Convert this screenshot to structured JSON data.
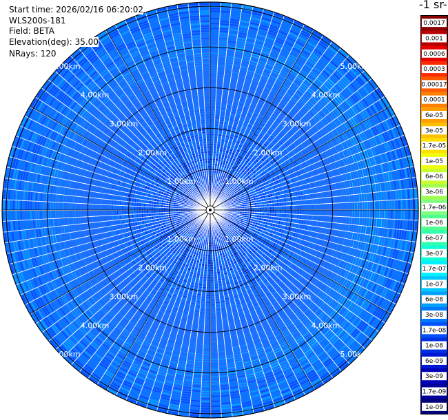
{
  "header": {
    "start_time": "Start time: 2026/02/16 06:20:02",
    "instrument": "WLS200s-181",
    "field": "Field: BETA",
    "elevation": "Elevation(deg): 35.00",
    "nrays": "NRays: 120"
  },
  "colorbar": {
    "title": "-1 sr-",
    "labels": [
      "0.0017",
      "0.001",
      "0.0006",
      "0.0003",
      "0.00017",
      "0.0001",
      "6e-05",
      "3e-05",
      "1.7e-05",
      "1e-05",
      "6e-06",
      "3e-06",
      "1.7e-06",
      "1e-06",
      "6e-07",
      "3e-07",
      "1.7e-07",
      "1e-07",
      "6e-08",
      "3e-08",
      "1.7e-08",
      "1e-08",
      "6e-09",
      "3e-09",
      "1.7e-09",
      "1e-09"
    ],
    "colors": [
      "#8a0000",
      "#b80000",
      "#e60000",
      "#ff2a00",
      "#ff5a00",
      "#ff8000",
      "#ffa000",
      "#ffc000",
      "#ffe000",
      "#f0ff10",
      "#c8ff30",
      "#a0ff50",
      "#80ff80",
      "#50ff90",
      "#30ffb0",
      "#10ffd8",
      "#00f0ff",
      "#00c8ff",
      "#00a0ff",
      "#0078ff",
      "#0050ff",
      "#0030e6",
      "#0018d0",
      "#0000b8",
      "#00009a",
      "#000078"
    ]
  },
  "chart_data": {
    "type": "heatmap",
    "projection": "polar-ppi",
    "nrays": 120,
    "range_rings_km": [
      1,
      2,
      3,
      4,
      5
    ],
    "range_labels": [
      "1.00km",
      "2.00km",
      "3.00km",
      "4.00km",
      "5.00km"
    ],
    "max_range_km": 5.0,
    "colorscale": "log",
    "value_min": 1e-09,
    "value_max": 0.0017,
    "typical_value": 3e-08
  }
}
